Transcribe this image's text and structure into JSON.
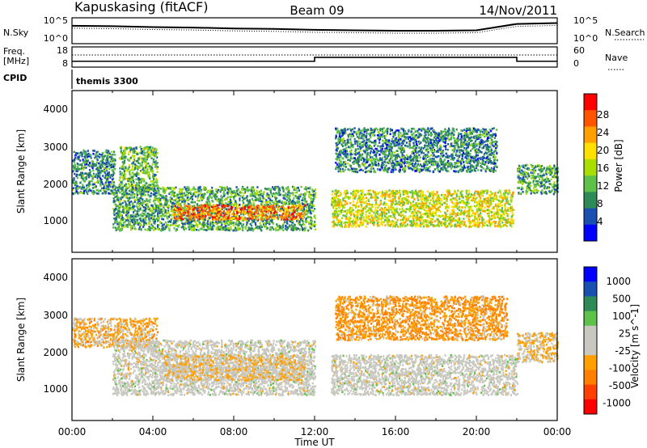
{
  "header": {
    "station": "Kapuskasing (fitACF)",
    "beam": "Beam 09",
    "date": "14/Nov/2011"
  },
  "noise_panel": {
    "left_label": "N.Sky",
    "right_label": "N.Search",
    "ticks_left": [
      "10^5",
      "10^0"
    ],
    "ticks_right": [
      "10^5",
      "10^0"
    ]
  },
  "freq_panel": {
    "left_label_1": "Freq.",
    "left_label_2": "[MHz]",
    "right_label": "Nave",
    "ticks_left": [
      "18",
      "8"
    ],
    "ticks_right": [
      "60",
      "0"
    ]
  },
  "cpid": {
    "label": "CPID",
    "value": "themis 3300"
  },
  "power_panel": {
    "ylabel": "Slant Range [km]",
    "yticks": [
      "4000",
      "3000",
      "2000",
      "1000"
    ],
    "colorbar_label": "Power [dB]",
    "colorbar_ticks": [
      "28",
      "24",
      "20",
      "16",
      "12",
      "8",
      "4"
    ],
    "colorbar_colors": [
      "#ff0000",
      "#ff5500",
      "#ffa000",
      "#ffe000",
      "#aadd00",
      "#5ec24a",
      "#2e8b57",
      "#1a50b0",
      "#0000ff"
    ]
  },
  "velocity_panel": {
    "ylabel": "Slant Range [km]",
    "yticks": [
      "4000",
      "3000",
      "2000",
      "1000"
    ],
    "colorbar_label": "Velocity [m s^-1]",
    "colorbar_ticks": [
      "1000",
      "500",
      "100",
      "25",
      "-25",
      "-100",
      "-500",
      "-1000"
    ],
    "colorbar_colors": [
      "#0000ff",
      "#1a50b0",
      "#2e8b57",
      "#5ec24a",
      "#c8c8c0",
      "#c8c8c0",
      "#ffa000",
      "#ff7f00",
      "#ff4000",
      "#ff0000"
    ]
  },
  "xaxis": {
    "label": "Time UT",
    "ticks": [
      "00:00",
      "04:00",
      "08:00",
      "12:00",
      "16:00",
      "20:00",
      "00:00"
    ]
  },
  "chart_data": {
    "type": "heatmap",
    "title": "Kapuskasing (fitACF) Beam 09 14/Nov/2011",
    "x_range_hours": [
      0,
      24
    ],
    "y_range_km": [
      180,
      4600
    ],
    "xlabel": "Time UT",
    "ylabel": "Slant Range [km]",
    "panels": [
      {
        "name": "Power",
        "unit": "dB",
        "scale": [
          0,
          32
        ],
        "scatter_regions": [
          {
            "t": [
              0.0,
              2.1
            ],
            "r": [
              1800,
              3000
            ],
            "value": 8
          },
          {
            "t": [
              2.3,
              4.2
            ],
            "r": [
              1900,
              3100
            ],
            "value": 12
          },
          {
            "t": [
              2.0,
              12.0
            ],
            "r": [
              800,
              2000
            ],
            "value": 10
          },
          {
            "t": [
              5.0,
              11.5
            ],
            "r": [
              1100,
              1500
            ],
            "value": 26
          },
          {
            "t": [
              12.8,
              21.8
            ],
            "r": [
              900,
              1900
            ],
            "value": 18
          },
          {
            "t": [
              13.0,
              21.0
            ],
            "r": [
              2400,
              3600
            ],
            "value": 8
          },
          {
            "t": [
              22.0,
              24.0
            ],
            "r": [
              1800,
              2600
            ],
            "value": 10
          }
        ]
      },
      {
        "name": "Velocity",
        "unit": "m s^-1",
        "scale": [
          -1000,
          1000
        ],
        "scatter_regions": [
          {
            "t": [
              0.0,
              4.2
            ],
            "r": [
              2200,
              3000
            ],
            "value": -300
          },
          {
            "t": [
              2.0,
              12.0
            ],
            "r": [
              900,
              2400
            ],
            "value": 0
          },
          {
            "t": [
              4.5,
              11.5
            ],
            "r": [
              1300,
              2000
            ],
            "value": -150
          },
          {
            "t": [
              12.8,
              22.0
            ],
            "r": [
              900,
              2000
            ],
            "value": 0
          },
          {
            "t": [
              13.0,
              21.5
            ],
            "r": [
              2400,
              3600
            ],
            "value": -400
          },
          {
            "t": [
              22.0,
              24.0
            ],
            "r": [
              1800,
              2600
            ],
            "value": -200
          }
        ]
      }
    ],
    "noise": {
      "description_series": "N.Sky",
      "x": [
        0,
        2,
        4,
        6,
        8,
        10,
        12,
        14,
        16,
        18,
        20,
        22,
        24
      ],
      "y_log10": [
        3.6,
        3.5,
        3.3,
        3.2,
        3.0,
        2.9,
        2.7,
        2.6,
        2.5,
        2.5,
        2.6,
        4.0,
        4.2
      ]
    },
    "frequency": {
      "x": [
        0,
        12.0,
        12.0,
        22.0,
        22.0,
        24
      ],
      "y_mhz": [
        10.5,
        10.5,
        12.8,
        12.8,
        10.5,
        10.5
      ]
    }
  }
}
